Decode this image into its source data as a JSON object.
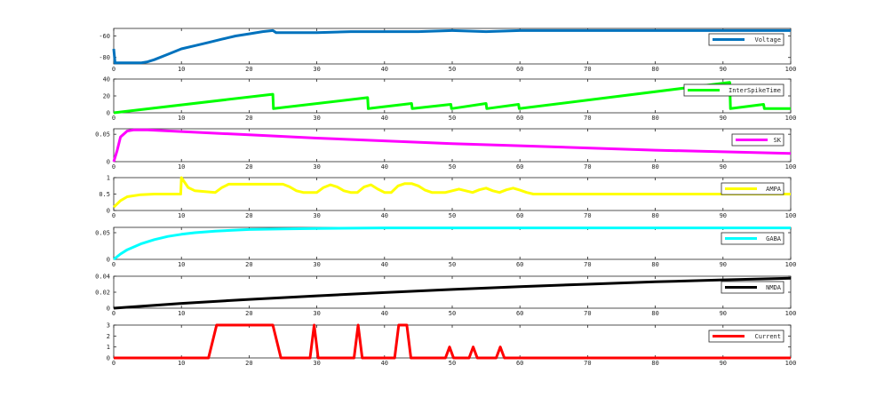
{
  "chart_data": [
    {
      "type": "line",
      "xlim": [
        0,
        100
      ],
      "ylim": [
        -86,
        -53
      ],
      "xticks": [
        0,
        10,
        20,
        30,
        40,
        50,
        60,
        70,
        80,
        90,
        100
      ],
      "yticks": [
        -80,
        -60
      ],
      "ytick_labels": [
        "-80",
        "-60"
      ],
      "legend": "top-right",
      "series": [
        {
          "name": "Voltage",
          "color": "#0072BD",
          "x": [
            0,
            0.2,
            0.4,
            2,
            4,
            5,
            6,
            8,
            10,
            12,
            14,
            16,
            18,
            20,
            22,
            23.5,
            24,
            26,
            30,
            35,
            40,
            45,
            50,
            55,
            60,
            65,
            70,
            75,
            80,
            85,
            90,
            95,
            100
          ],
          "y": [
            -72,
            -85,
            -85,
            -85,
            -85,
            -84,
            -82,
            -77,
            -72,
            -69,
            -66,
            -63,
            -60,
            -58,
            -56,
            -55,
            -57,
            -57,
            -57,
            -56,
            -56,
            -56,
            -55,
            -56,
            -55,
            -55,
            -55,
            -55,
            -55,
            -55,
            -55,
            -55,
            -55
          ]
        }
      ]
    },
    {
      "type": "line",
      "xlim": [
        0,
        100
      ],
      "ylim": [
        0,
        40
      ],
      "xticks": [
        0,
        10,
        20,
        30,
        40,
        50,
        60,
        70,
        80,
        90,
        100
      ],
      "yticks": [
        0,
        20,
        40
      ],
      "ytick_labels": [
        "0",
        "20",
        "40"
      ],
      "legend": "top-right",
      "series": [
        {
          "name": "InterSpikeTime",
          "color": "#00FF00",
          "x": [
            0,
            23.5,
            23.6,
            37.5,
            37.6,
            44,
            44.1,
            49.8,
            49.9,
            55,
            55.1,
            59.8,
            59.9,
            91,
            91.1,
            96,
            96.1,
            100
          ],
          "y": [
            0,
            22,
            5,
            18,
            5,
            11,
            5,
            10,
            5,
            11,
            5,
            10,
            5,
            36,
            5,
            10,
            5,
            5
          ]
        }
      ]
    },
    {
      "type": "line",
      "xlim": [
        0,
        100
      ],
      "ylim": [
        0,
        0.06
      ],
      "xticks": [
        0,
        10,
        20,
        30,
        40,
        50,
        60,
        70,
        80,
        90,
        100
      ],
      "yticks": [
        0,
        0.05
      ],
      "ytick_labels": [
        "0",
        "0.05"
      ],
      "legend": "top-right",
      "series": [
        {
          "name": "SK",
          "color": "#FF00FF",
          "x": [
            0,
            0.5,
            1,
            2,
            3,
            5,
            10,
            20,
            30,
            40,
            50,
            60,
            70,
            80,
            90,
            100
          ],
          "y": [
            0,
            0.02,
            0.045,
            0.056,
            0.058,
            0.058,
            0.055,
            0.049,
            0.043,
            0.038,
            0.033,
            0.029,
            0.025,
            0.021,
            0.018,
            0.015
          ]
        }
      ]
    },
    {
      "type": "line",
      "xlim": [
        0,
        100
      ],
      "ylim": [
        0,
        1
      ],
      "xticks": [
        0,
        10,
        20,
        30,
        40,
        50,
        60,
        70,
        80,
        90,
        100
      ],
      "yticks": [
        0,
        0.5,
        1
      ],
      "ytick_labels": [
        "0",
        "0.5",
        "1"
      ],
      "legend": "top-right",
      "series": [
        {
          "name": "AMPA",
          "color": "#FFFF00",
          "x": [
            0,
            1,
            2,
            4,
            6,
            8,
            9.9,
            10,
            11,
            12,
            15,
            16,
            17,
            18,
            20,
            22,
            24,
            25,
            26,
            27,
            28,
            29,
            30,
            31,
            32,
            33,
            34,
            35,
            36,
            37,
            38,
            39,
            40,
            41,
            42,
            43,
            44,
            45,
            46,
            47,
            48,
            49,
            50,
            51,
            52,
            53,
            54,
            55,
            56,
            57,
            58,
            59,
            60,
            61,
            62,
            65,
            70,
            80,
            90,
            100
          ],
          "y": [
            0.1,
            0.3,
            0.42,
            0.48,
            0.5,
            0.5,
            0.5,
            1,
            0.7,
            0.6,
            0.55,
            0.7,
            0.8,
            0.8,
            0.8,
            0.8,
            0.8,
            0.8,
            0.72,
            0.6,
            0.55,
            0.55,
            0.55,
            0.7,
            0.78,
            0.72,
            0.6,
            0.55,
            0.55,
            0.72,
            0.78,
            0.65,
            0.55,
            0.55,
            0.75,
            0.82,
            0.82,
            0.75,
            0.62,
            0.55,
            0.55,
            0.55,
            0.6,
            0.65,
            0.6,
            0.55,
            0.63,
            0.68,
            0.6,
            0.55,
            0.63,
            0.68,
            0.62,
            0.55,
            0.5,
            0.5,
            0.5,
            0.5,
            0.5,
            0.5
          ]
        }
      ]
    },
    {
      "type": "line",
      "xlim": [
        0,
        100
      ],
      "ylim": [
        0,
        0.06
      ],
      "xticks": [
        0,
        10,
        20,
        30,
        40,
        50,
        60,
        70,
        80,
        90,
        100
      ],
      "yticks": [
        0,
        0.05
      ],
      "ytick_labels": [
        "0",
        "0.05"
      ],
      "legend": "top-right",
      "series": [
        {
          "name": "GABA",
          "color": "#00FFFF",
          "x": [
            0,
            1,
            2,
            4,
            6,
            8,
            10,
            12,
            15,
            20,
            25,
            30,
            40,
            50,
            60,
            70,
            80,
            90,
            100
          ],
          "y": [
            0,
            0.01,
            0.018,
            0.029,
            0.037,
            0.043,
            0.047,
            0.05,
            0.053,
            0.056,
            0.057,
            0.058,
            0.059,
            0.059,
            0.059,
            0.059,
            0.059,
            0.059,
            0.059
          ]
        }
      ]
    },
    {
      "type": "line",
      "xlim": [
        0,
        100
      ],
      "ylim": [
        0,
        0.04
      ],
      "xticks": [
        0,
        10,
        20,
        30,
        40,
        50,
        60,
        70,
        80,
        90,
        100
      ],
      "yticks": [
        0,
        0.02,
        0.04
      ],
      "ytick_labels": [
        "0",
        "0.02",
        "0.04"
      ],
      "legend": "top-right",
      "series": [
        {
          "name": "NMDA",
          "color": "#000000",
          "x": [
            0,
            10,
            20,
            30,
            40,
            50,
            60,
            70,
            80,
            90,
            100
          ],
          "y": [
            0,
            0.006,
            0.011,
            0.0155,
            0.0195,
            0.0235,
            0.027,
            0.03,
            0.033,
            0.0355,
            0.0375
          ]
        }
      ]
    },
    {
      "type": "line",
      "xlim": [
        0,
        100
      ],
      "ylim": [
        0,
        3
      ],
      "xticks": [
        0,
        10,
        20,
        30,
        40,
        50,
        60,
        70,
        80,
        90,
        100
      ],
      "xtick_labels": [
        "0",
        "10",
        "20",
        "30",
        "40",
        "50",
        "60",
        "70",
        "80",
        "90",
        "100"
      ],
      "yticks": [
        0,
        1,
        2,
        3
      ],
      "ytick_labels": [
        "0",
        "1",
        "2",
        "3"
      ],
      "legend": "top-right",
      "series": [
        {
          "name": "Current",
          "color": "#FF0000",
          "x": [
            0,
            14,
            15.2,
            23.5,
            24.7,
            29,
            29.6,
            30.2,
            31,
            35.5,
            36.1,
            36.7,
            37.5,
            41.5,
            42.1,
            43.3,
            43.9,
            49,
            49.6,
            50.2,
            52.5,
            53.1,
            53.7,
            56.5,
            57.1,
            57.7,
            100
          ],
          "y": [
            0,
            0,
            3,
            3,
            0,
            0,
            3,
            0,
            0,
            0,
            3,
            0,
            0,
            0,
            3,
            3,
            0,
            0,
            1,
            0,
            0,
            1,
            0,
            0,
            1,
            0,
            0
          ]
        }
      ]
    }
  ]
}
